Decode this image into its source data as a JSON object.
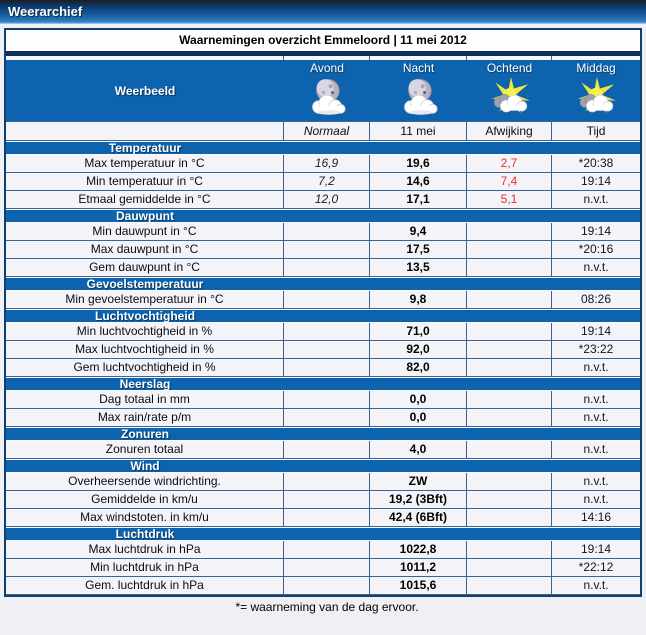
{
  "app": {
    "title": "Weerarchief"
  },
  "colors": {
    "accent_blue": "#0d63ad",
    "border_navy": "#3a6396",
    "outer_border": "#11406f",
    "negative_red": "#e8312e",
    "header_gradient_top": "#1b1e24",
    "header_gradient_bottom": "#2b7cc0",
    "row_background": "#f4f4f8"
  },
  "table": {
    "title": "Waarnemingen overzicht Emmeloord | 11 mei 2012",
    "weerbeeld_label": "Weerbeeld",
    "day_parts": [
      {
        "label": "Avond",
        "icon": "moon-cloud-icon"
      },
      {
        "label": "Nacht",
        "icon": "moon-cloud-icon"
      },
      {
        "label": "Ochtend",
        "icon": "sun-cloud-icon"
      },
      {
        "label": "Middag",
        "icon": "sun-cloud-icon"
      }
    ],
    "column_headers": [
      "Normaal",
      "11 mei",
      "Afwijking",
      "Tijd"
    ],
    "sections": [
      {
        "name": "Temperatuur",
        "rows": [
          {
            "label": "Max temperatuur in °C",
            "normaal": "16,9",
            "value": "19,6",
            "afwijking": "2,7",
            "tijd": "*20:38"
          },
          {
            "label": "Min temperatuur in °C",
            "normaal": "7,2",
            "value": "14,6",
            "afwijking": "7,4",
            "tijd": "19:14"
          },
          {
            "label": "Etmaal gemiddelde in °C",
            "normaal": "12,0",
            "value": "17,1",
            "afwijking": "5,1",
            "tijd": "n.v.t."
          }
        ]
      },
      {
        "name": "Dauwpunt",
        "rows": [
          {
            "label": "Min dauwpunt in °C",
            "normaal": "",
            "value": "9,4",
            "afwijking": "",
            "tijd": "19:14"
          },
          {
            "label": "Max dauwpunt in °C",
            "normaal": "",
            "value": "17,5",
            "afwijking": "",
            "tijd": "*20:16"
          },
          {
            "label": "Gem dauwpunt in °C",
            "normaal": "",
            "value": "13,5",
            "afwijking": "",
            "tijd": "n.v.t."
          }
        ]
      },
      {
        "name": "Gevoelstemperatuur",
        "rows": [
          {
            "label": "Min gevoelstemperatuur in °C",
            "normaal": "",
            "value": "9,8",
            "afwijking": "",
            "tijd": "08:26"
          }
        ]
      },
      {
        "name": "Luchtvochtigheid",
        "rows": [
          {
            "label": "Min luchtvochtigheid in %",
            "normaal": "",
            "value": "71,0",
            "afwijking": "",
            "tijd": "19:14"
          },
          {
            "label": "Max luchtvochtigheid in %",
            "normaal": "",
            "value": "92,0",
            "afwijking": "",
            "tijd": "*23:22"
          },
          {
            "label": "Gem luchtvochtigheid in %",
            "normaal": "",
            "value": "82,0",
            "afwijking": "",
            "tijd": "n.v.t."
          }
        ]
      },
      {
        "name": "Neerslag",
        "rows": [
          {
            "label": "Dag totaal in mm",
            "normaal": "",
            "value": "0,0",
            "afwijking": "",
            "tijd": "n.v.t."
          },
          {
            "label": "Max rain/rate p/m",
            "normaal": "",
            "value": "0,0",
            "afwijking": "",
            "tijd": "n.v.t."
          }
        ]
      },
      {
        "name": "Zonuren",
        "rows": [
          {
            "label": "Zonuren totaal",
            "normaal": "",
            "value": "4,0",
            "afwijking": "",
            "tijd": "n.v.t."
          }
        ]
      },
      {
        "name": "Wind",
        "rows": [
          {
            "label": "Overheersende windrichting.",
            "normaal": "",
            "value": "ZW",
            "afwijking": "",
            "tijd": "n.v.t."
          },
          {
            "label": "Gemiddelde in km/u",
            "normaal": "",
            "value": "19,2 (3Bft)",
            "afwijking": "",
            "tijd": "n.v.t."
          },
          {
            "label": "Max windstoten. in km/u",
            "normaal": "",
            "value": "42,4 (6Bft)",
            "afwijking": "",
            "tijd": "14:16"
          }
        ]
      },
      {
        "name": "Luchtdruk",
        "rows": [
          {
            "label": "Max luchtdruk in hPa",
            "normaal": "",
            "value": "1022,8",
            "afwijking": "",
            "tijd": "19:14"
          },
          {
            "label": "Min luchtdruk in hPa",
            "normaal": "",
            "value": "1011,2",
            "afwijking": "",
            "tijd": "*22:12"
          },
          {
            "label": "Gem. luchtdruk in hPa",
            "normaal": "",
            "value": "1015,6",
            "afwijking": "",
            "tijd": "n.v.t."
          }
        ]
      }
    ],
    "footnote": "*= waarneming van de dag ervoor."
  }
}
